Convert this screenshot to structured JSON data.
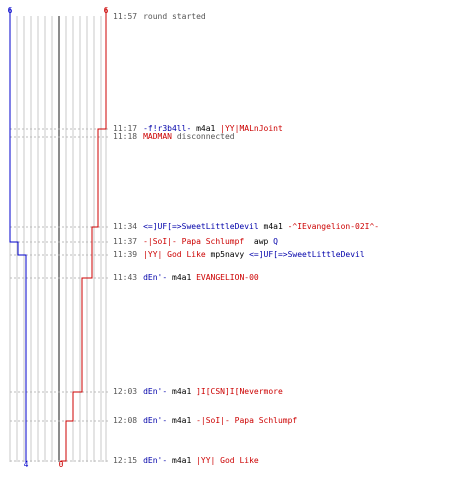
{
  "colors": {
    "team_blue": "#0000cc",
    "team_red": "#cc0000",
    "grid": "#c8c8c8",
    "center_line": "#666666",
    "event_line": "#bbbbbb",
    "time_text": "#555555"
  },
  "scoreboard": {
    "blue_start": "6",
    "red_start": "6",
    "blue_end": "4",
    "red_end": "0"
  },
  "events": [
    {
      "time": "11:57",
      "parts": [
        {
          "text": "round started",
          "color": "gray"
        }
      ],
      "blue_alive": 6,
      "red_alive": 6
    },
    {
      "time": "11:17",
      "parts": [
        {
          "text": "-f!r3b4ll-",
          "color": "blue"
        },
        {
          "text": " m4a1 ",
          "color": "black"
        },
        {
          "text": "|YY|MALnJoint",
          "color": "red"
        }
      ],
      "blue_alive": 6,
      "red_alive": 5
    },
    {
      "time": "11:18",
      "parts": [
        {
          "text": "MADMAN",
          "color": "red"
        },
        {
          "text": " disconnected",
          "color": "gray"
        }
      ],
      "blue_alive": 6,
      "red_alive": 5
    },
    {
      "time": "11:34",
      "parts": [
        {
          "text": "<=]UF[=>SweetLittleDevil",
          "color": "blue"
        },
        {
          "text": " m4a1 ",
          "color": "black"
        },
        {
          "text": "-^IEvangelion-02I^-",
          "color": "red"
        }
      ],
      "blue_alive": 6,
      "red_alive": 4
    },
    {
      "time": "11:37",
      "parts": [
        {
          "text": "-|SoI|- Papa Schlumpf",
          "color": "red"
        },
        {
          "text": "  awp ",
          "color": "black"
        },
        {
          "text": "Q",
          "color": "blue"
        }
      ],
      "blue_alive": 5,
      "red_alive": 4
    },
    {
      "time": "11:39",
      "parts": [
        {
          "text": "|YY| God Like",
          "color": "red"
        },
        {
          "text": " mp5navy ",
          "color": "black"
        },
        {
          "text": "<=]UF[=>SweetLittleDevil",
          "color": "blue"
        }
      ],
      "blue_alive": 4,
      "red_alive": 4
    },
    {
      "time": "11:43",
      "parts": [
        {
          "text": "dEn'-",
          "color": "blue"
        },
        {
          "text": " m4a1 ",
          "color": "black"
        },
        {
          "text": "EVANGELION-00",
          "color": "red"
        }
      ],
      "blue_alive": 4,
      "red_alive": 3
    },
    {
      "time": "12:03",
      "parts": [
        {
          "text": "dEn'-",
          "color": "blue"
        },
        {
          "text": " m4a1 ",
          "color": "black"
        },
        {
          "text": "]I[CSN]I[Nevermore",
          "color": "red"
        }
      ],
      "blue_alive": 4,
      "red_alive": 2
    },
    {
      "time": "12:08",
      "parts": [
        {
          "text": "dEn'-",
          "color": "blue"
        },
        {
          "text": " m4a1 ",
          "color": "black"
        },
        {
          "text": "-|SoI|- Papa Schlumpf",
          "color": "red"
        }
      ],
      "blue_alive": 4,
      "red_alive": 1
    },
    {
      "time": "12:15",
      "parts": [
        {
          "text": "dEn'-",
          "color": "blue"
        },
        {
          "text": " m4a1 ",
          "color": "black"
        },
        {
          "text": "|YY| God Like",
          "color": "red"
        }
      ],
      "blue_alive": 4,
      "red_alive": 0
    }
  ]
}
